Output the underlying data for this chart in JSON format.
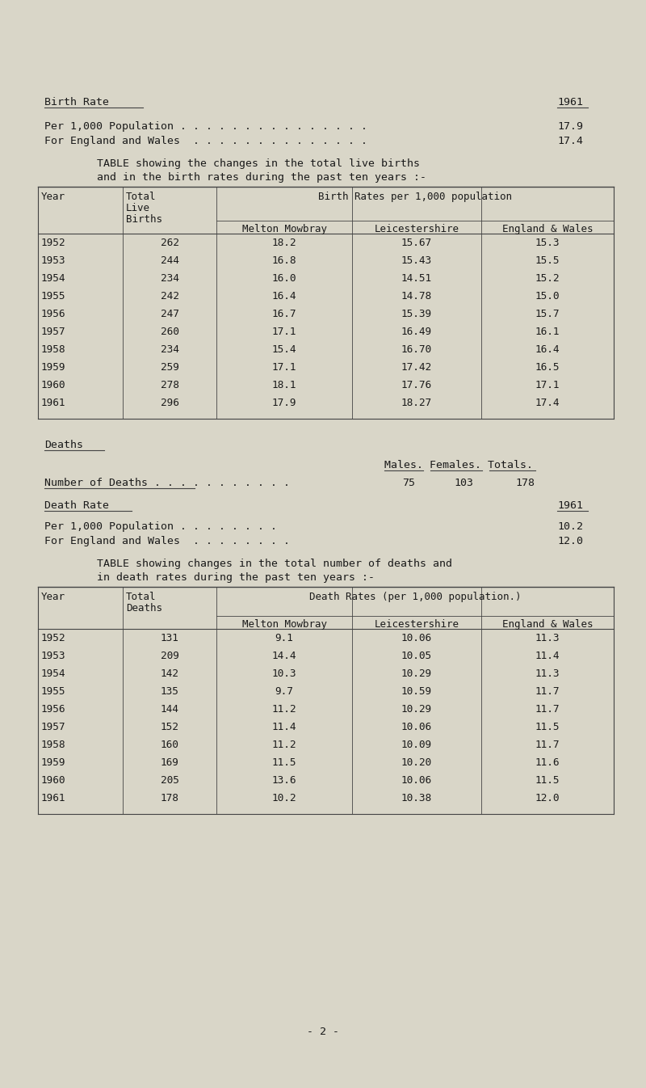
{
  "bg_color": "#d9d6c8",
  "text_color": "#1a1a1a",
  "page_number": "- 2 -",
  "birth_rate_header": "Birth Rate",
  "birth_rate_year": "1961",
  "birth_rate_per1000_label": "Per 1,000 Population . . . . . . . . . . . . . . .",
  "birth_rate_per1000_value": "17.9",
  "birth_rate_england_label": "For England and Wales  . . . . . . . . . . . . . .",
  "birth_rate_england_value": "17.4",
  "birth_rate_table_note_line1": "TABLE showing the changes in the total live births",
  "birth_rate_table_note_line2": "and in the birth rates during the past ten years :-",
  "birth_table_subheader": "Birth Rates per 1,000 population",
  "birth_data": [
    [
      1952,
      262,
      "18.2",
      "15.67",
      "15.3"
    ],
    [
      1953,
      244,
      "16.8",
      "15.43",
      "15.5"
    ],
    [
      1954,
      234,
      "16.0",
      "14.51",
      "15.2"
    ],
    [
      1955,
      242,
      "16.4",
      "14.78",
      "15.0"
    ],
    [
      1956,
      247,
      "16.7",
      "15.39",
      "15.7"
    ],
    [
      1957,
      260,
      "17.1",
      "16.49",
      "16.1"
    ],
    [
      1958,
      234,
      "15.4",
      "16.70",
      "16.4"
    ],
    [
      1959,
      259,
      "17.1",
      "17.42",
      "16.5"
    ],
    [
      1960,
      278,
      "18.1",
      "17.76",
      "17.1"
    ],
    [
      1961,
      296,
      "17.9",
      "18.27",
      "17.4"
    ]
  ],
  "deaths_header": "Deaths",
  "deaths_males_females_header": "Males. Females. Totals.",
  "deaths_number_label": "Number of Deaths . . . . . . . . . . .",
  "deaths_males": "75",
  "deaths_females": "103",
  "deaths_totals": "178",
  "death_rate_header": "Death Rate",
  "death_rate_year": "1961",
  "death_rate_per1000_label": "Per 1,000 Population . . . . . . . .",
  "death_rate_per1000_value": "10.2",
  "death_rate_england_label": "For England and Wales  . . . . . . . .",
  "death_rate_england_value": "12.0",
  "death_rate_table_note_line1": "TABLE showing changes in the total number of deaths and",
  "death_rate_table_note_line2": "in death rates during the past ten years :-",
  "death_table_subheader": "Death Rates (per 1,000 population.)",
  "death_data": [
    [
      1952,
      131,
      "9.1",
      "10.06",
      "11.3"
    ],
    [
      1953,
      209,
      "14.4",
      "10.05",
      "11.4"
    ],
    [
      1954,
      142,
      "10.3",
      "10.29",
      "11.3"
    ],
    [
      1955,
      135,
      "9.7",
      "10.59",
      "11.7"
    ],
    [
      1956,
      144,
      "11.2",
      "10.29",
      "11.7"
    ],
    [
      1957,
      152,
      "11.4",
      "10.06",
      "11.5"
    ],
    [
      1958,
      160,
      "11.2",
      "10.09",
      "11.7"
    ],
    [
      1959,
      169,
      "11.5",
      "10.20",
      "11.6"
    ],
    [
      1960,
      205,
      "13.6",
      "10.06",
      "11.5"
    ],
    [
      1961,
      178,
      "10.2",
      "10.38",
      "12.0"
    ]
  ]
}
